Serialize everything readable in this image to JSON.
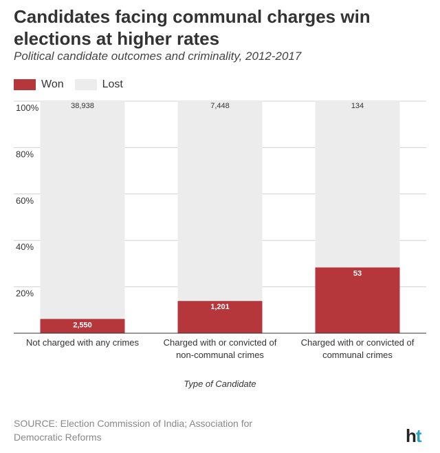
{
  "header": {
    "title": "Candidates facing communal charges win elections at higher rates",
    "subtitle": "Political candidate outcomes and criminality, 2012-2017"
  },
  "legend": [
    {
      "label": "Won",
      "color": "#b5373b"
    },
    {
      "label": "Lost",
      "color": "#ececec"
    }
  ],
  "chart_data": {
    "type": "bar",
    "stacked": true,
    "normalized": true,
    "categories": [
      [
        "Not charged with any crimes"
      ],
      [
        "Charged with or convicted of",
        "non-communal crimes"
      ],
      [
        "Charged with or convicted of",
        "communal crimes"
      ]
    ],
    "series": [
      {
        "name": "Won",
        "color": "#b5373b",
        "values": [
          2550,
          1201,
          53
        ],
        "labels": [
          "2,550",
          "1,201",
          "53"
        ]
      },
      {
        "name": "Lost",
        "color": "#ececec",
        "values": [
          38938,
          7448,
          134
        ],
        "labels": [
          "38,938",
          "7,448",
          "134"
        ]
      }
    ],
    "xlabel": "Type of Candidate",
    "ylabel": "",
    "ylim": [
      0,
      100
    ],
    "yticks": [
      "20%",
      "40%",
      "60%",
      "80%",
      "100%"
    ],
    "grid": true
  },
  "footer": {
    "source": "SOURCE: Election Commission of India; Association for Democratic Reforms",
    "logo_h": "h",
    "logo_t": "t"
  }
}
